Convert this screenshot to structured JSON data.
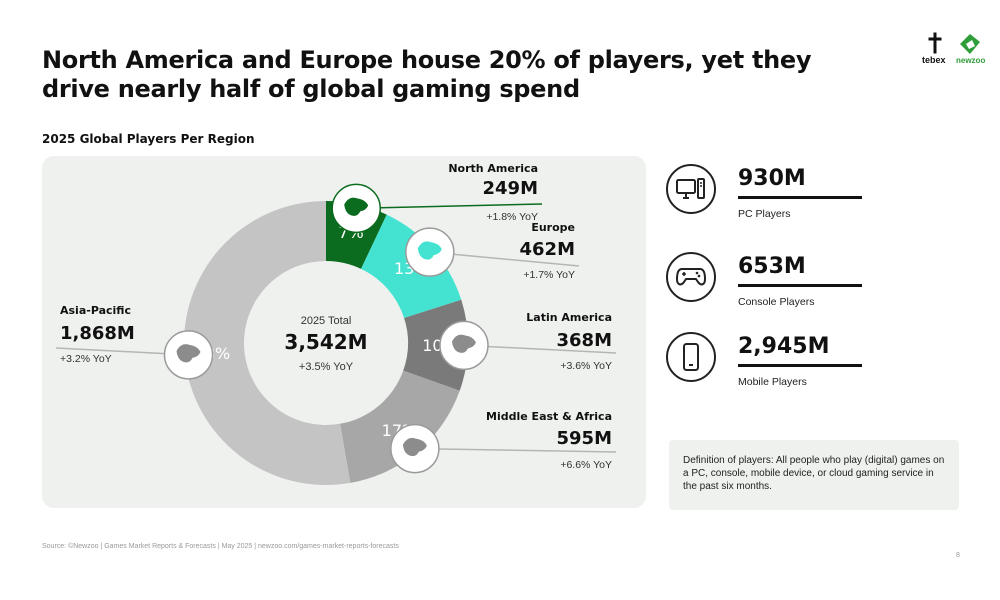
{
  "headline": "North America and Europe house 20% of players, yet they drive nearly half of global gaming spend",
  "subhead": "2025 Global Players Per Region",
  "logos": {
    "tebex": "tebex",
    "newzoo": "newzoo"
  },
  "colors": {
    "north_america": "#0b6b1e",
    "europe": "#44e3d1",
    "latin_america": "#7a7a7a",
    "middle_east_africa": "#a7a7a7",
    "asia_pacific": "#c4c4c4",
    "panel_bg": "#eef1ee"
  },
  "chart_data": {
    "type": "pie",
    "title": "2025 Global Players Per Region",
    "center_label": "2025 Total",
    "center_value": "3,542M",
    "center_yoy": "+3.5% YoY",
    "slices": [
      {
        "name": "North America",
        "value": 249,
        "value_label": "249M",
        "percent": 7,
        "percent_label": "7%",
        "yoy": "+1.8% YoY",
        "color": "#0b6b1e",
        "icon": "north-america-map-icon"
      },
      {
        "name": "Europe",
        "value": 462,
        "value_label": "462M",
        "percent": 13,
        "percent_label": "13%",
        "yoy": "+1.7% YoY",
        "color": "#44e3d1",
        "icon": "europe-map-icon"
      },
      {
        "name": "Latin America",
        "value": 368,
        "value_label": "368M",
        "percent": 10,
        "percent_label": "10%",
        "yoy": "+3.6% YoY",
        "color": "#7a7a7a",
        "icon": "latin-america-map-icon"
      },
      {
        "name": "Middle East & Africa",
        "value": 595,
        "value_label": "595M",
        "percent": 17,
        "percent_label": "17%",
        "yoy": "+6.6% YoY",
        "color": "#a7a7a7",
        "icon": "africa-map-icon"
      },
      {
        "name": "Asia-Pacific",
        "value": 1868,
        "value_label": "1,868M",
        "percent": 53,
        "percent_label": "53%",
        "yoy": "+3.2% YoY",
        "color": "#c4c4c4",
        "icon": "asia-pacific-map-icon"
      }
    ]
  },
  "platforms": [
    {
      "value": "930M",
      "label": "PC Players",
      "icon": "pc-icon"
    },
    {
      "value": "653M",
      "label": "Console Players",
      "icon": "gamepad-icon"
    },
    {
      "value": "2,945M",
      "label": "Mobile Players",
      "icon": "mobile-phone-icon"
    }
  ],
  "definition": "Definition of players: All people who play (digital) games on a PC, console, mobile device, or cloud gaming service in the past six months.",
  "source": "Source: ©Newzoo | Games Market Reports & Forecasts | May 2025 | newzoo.com/games-market-reports-forecasts",
  "page_number": "8"
}
